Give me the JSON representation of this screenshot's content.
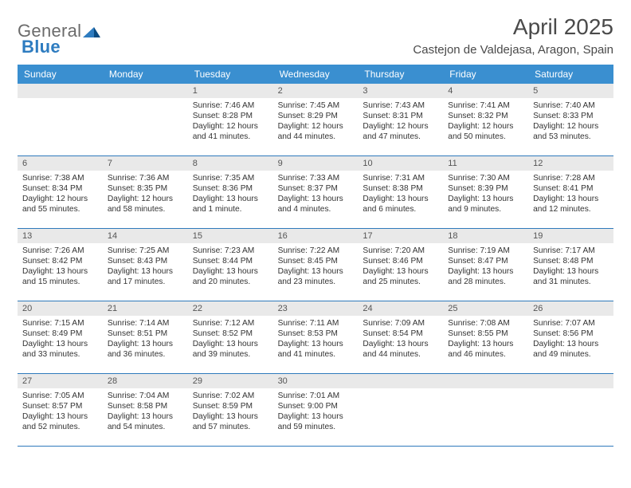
{
  "brand": {
    "part1": "General",
    "part2": "Blue"
  },
  "title": "April 2025",
  "location": "Castejon de Valdejasa, Aragon, Spain",
  "colors": {
    "header_bg": "#3a8fd0",
    "row_border": "#2f7abc",
    "daynum_bg": "#e9e9e9",
    "text": "#333333",
    "logo_gray": "#6b6b6b",
    "logo_blue": "#2e7cc0",
    "background": "#ffffff"
  },
  "typography": {
    "title_fontsize_pt": 21,
    "subtitle_fontsize_pt": 11,
    "dayheader_fontsize_pt": 9,
    "cell_fontsize_pt": 7.6
  },
  "calendar": {
    "day_headers": [
      "Sunday",
      "Monday",
      "Tuesday",
      "Wednesday",
      "Thursday",
      "Friday",
      "Saturday"
    ],
    "start_weekday_index": 2,
    "days": [
      {
        "n": 1,
        "sunrise": "7:46 AM",
        "sunset": "8:28 PM",
        "daylight": "12 hours and 41 minutes."
      },
      {
        "n": 2,
        "sunrise": "7:45 AM",
        "sunset": "8:29 PM",
        "daylight": "12 hours and 44 minutes."
      },
      {
        "n": 3,
        "sunrise": "7:43 AM",
        "sunset": "8:31 PM",
        "daylight": "12 hours and 47 minutes."
      },
      {
        "n": 4,
        "sunrise": "7:41 AM",
        "sunset": "8:32 PM",
        "daylight": "12 hours and 50 minutes."
      },
      {
        "n": 5,
        "sunrise": "7:40 AM",
        "sunset": "8:33 PM",
        "daylight": "12 hours and 53 minutes."
      },
      {
        "n": 6,
        "sunrise": "7:38 AM",
        "sunset": "8:34 PM",
        "daylight": "12 hours and 55 minutes."
      },
      {
        "n": 7,
        "sunrise": "7:36 AM",
        "sunset": "8:35 PM",
        "daylight": "12 hours and 58 minutes."
      },
      {
        "n": 8,
        "sunrise": "7:35 AM",
        "sunset": "8:36 PM",
        "daylight": "13 hours and 1 minute."
      },
      {
        "n": 9,
        "sunrise": "7:33 AM",
        "sunset": "8:37 PM",
        "daylight": "13 hours and 4 minutes."
      },
      {
        "n": 10,
        "sunrise": "7:31 AM",
        "sunset": "8:38 PM",
        "daylight": "13 hours and 6 minutes."
      },
      {
        "n": 11,
        "sunrise": "7:30 AM",
        "sunset": "8:39 PM",
        "daylight": "13 hours and 9 minutes."
      },
      {
        "n": 12,
        "sunrise": "7:28 AM",
        "sunset": "8:41 PM",
        "daylight": "13 hours and 12 minutes."
      },
      {
        "n": 13,
        "sunrise": "7:26 AM",
        "sunset": "8:42 PM",
        "daylight": "13 hours and 15 minutes."
      },
      {
        "n": 14,
        "sunrise": "7:25 AM",
        "sunset": "8:43 PM",
        "daylight": "13 hours and 17 minutes."
      },
      {
        "n": 15,
        "sunrise": "7:23 AM",
        "sunset": "8:44 PM",
        "daylight": "13 hours and 20 minutes."
      },
      {
        "n": 16,
        "sunrise": "7:22 AM",
        "sunset": "8:45 PM",
        "daylight": "13 hours and 23 minutes."
      },
      {
        "n": 17,
        "sunrise": "7:20 AM",
        "sunset": "8:46 PM",
        "daylight": "13 hours and 25 minutes."
      },
      {
        "n": 18,
        "sunrise": "7:19 AM",
        "sunset": "8:47 PM",
        "daylight": "13 hours and 28 minutes."
      },
      {
        "n": 19,
        "sunrise": "7:17 AM",
        "sunset": "8:48 PM",
        "daylight": "13 hours and 31 minutes."
      },
      {
        "n": 20,
        "sunrise": "7:15 AM",
        "sunset": "8:49 PM",
        "daylight": "13 hours and 33 minutes."
      },
      {
        "n": 21,
        "sunrise": "7:14 AM",
        "sunset": "8:51 PM",
        "daylight": "13 hours and 36 minutes."
      },
      {
        "n": 22,
        "sunrise": "7:12 AM",
        "sunset": "8:52 PM",
        "daylight": "13 hours and 39 minutes."
      },
      {
        "n": 23,
        "sunrise": "7:11 AM",
        "sunset": "8:53 PM",
        "daylight": "13 hours and 41 minutes."
      },
      {
        "n": 24,
        "sunrise": "7:09 AM",
        "sunset": "8:54 PM",
        "daylight": "13 hours and 44 minutes."
      },
      {
        "n": 25,
        "sunrise": "7:08 AM",
        "sunset": "8:55 PM",
        "daylight": "13 hours and 46 minutes."
      },
      {
        "n": 26,
        "sunrise": "7:07 AM",
        "sunset": "8:56 PM",
        "daylight": "13 hours and 49 minutes."
      },
      {
        "n": 27,
        "sunrise": "7:05 AM",
        "sunset": "8:57 PM",
        "daylight": "13 hours and 52 minutes."
      },
      {
        "n": 28,
        "sunrise": "7:04 AM",
        "sunset": "8:58 PM",
        "daylight": "13 hours and 54 minutes."
      },
      {
        "n": 29,
        "sunrise": "7:02 AM",
        "sunset": "8:59 PM",
        "daylight": "13 hours and 57 minutes."
      },
      {
        "n": 30,
        "sunrise": "7:01 AM",
        "sunset": "9:00 PM",
        "daylight": "13 hours and 59 minutes."
      }
    ],
    "labels": {
      "sunrise": "Sunrise:",
      "sunset": "Sunset:",
      "daylight": "Daylight:"
    }
  }
}
